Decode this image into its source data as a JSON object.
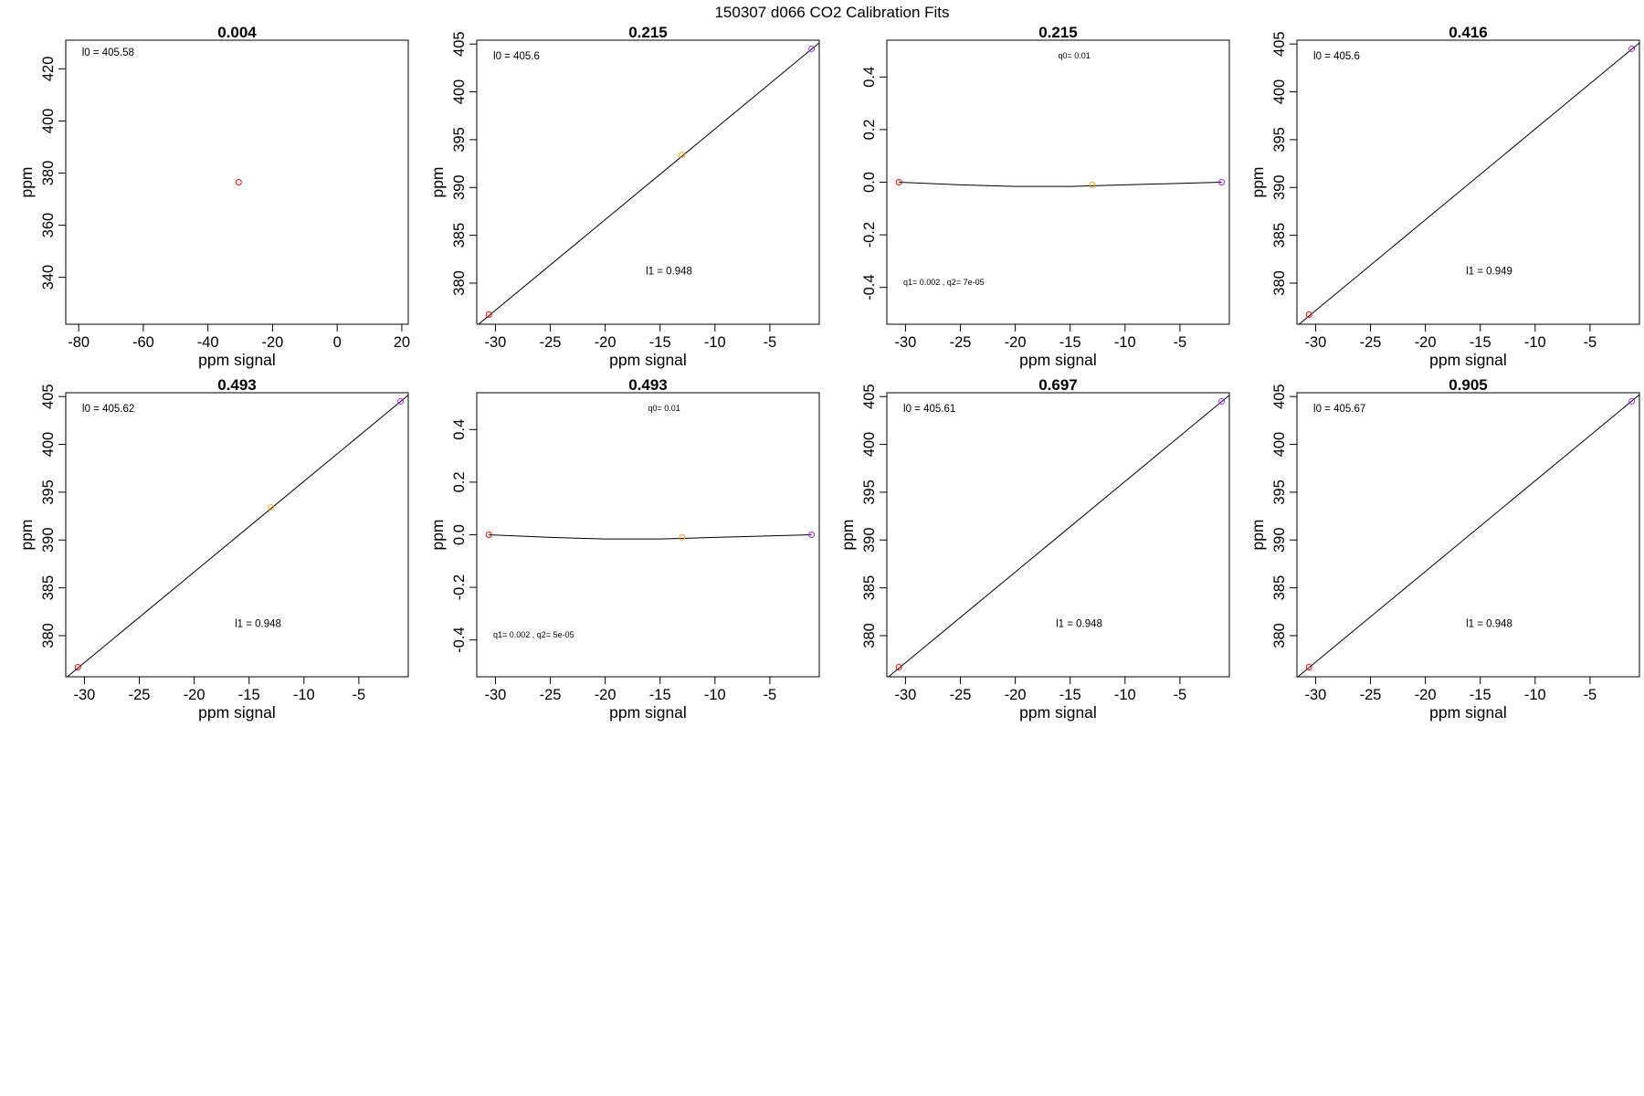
{
  "figure_title": "150307   d066   CO2 Calibration Fits",
  "colors": {
    "red": "#ff0000",
    "orange": "#ffa500",
    "purple": "#a020f0",
    "line": "#000000"
  },
  "chart_data": [
    {
      "type": "scatter",
      "title": "0.004",
      "xlabel": "ppm signal",
      "ylabel": "ppm",
      "xlim": [
        -84,
        22
      ],
      "ylim": [
        322,
        431
      ],
      "xticks": [
        -80,
        -60,
        -40,
        -20,
        0,
        20
      ],
      "xtick_labels": [
        "-80",
        "-60",
        "-40",
        "-20",
        "0",
        "20"
      ],
      "yticks": [
        340,
        360,
        380,
        400,
        420
      ],
      "ytick_labels": [
        "340",
        "360",
        "380",
        "400",
        "420"
      ],
      "points": [
        {
          "x": -30.5,
          "y": 376.5,
          "color": "red"
        }
      ],
      "fit": null,
      "annotations": [
        {
          "text": "l0 =  405.58",
          "class": "l",
          "x": -79,
          "y": 425
        }
      ]
    },
    {
      "type": "scatter",
      "title": "0.215",
      "xlabel": "ppm signal",
      "ylabel": "ppm",
      "xlim": [
        -31.7,
        -0.5
      ],
      "ylim": [
        375.7,
        405.4
      ],
      "xticks": [
        -30,
        -25,
        -20,
        -15,
        -10,
        -5
      ],
      "xtick_labels": [
        "-30",
        "-25",
        "-20",
        "-15",
        "-10",
        "-5"
      ],
      "yticks": [
        380,
        385,
        390,
        395,
        400,
        405
      ],
      "ytick_labels": [
        "380",
        "385",
        "390",
        "395",
        "400",
        "405"
      ],
      "points": [
        {
          "x": -30.6,
          "y": 376.7,
          "color": "red"
        },
        {
          "x": -13.0,
          "y": 393.4,
          "color": "orange"
        },
        {
          "x": -1.2,
          "y": 404.5,
          "color": "purple"
        }
      ],
      "fit": {
        "kind": "line",
        "intercept": 405.6,
        "slope": 0.948
      },
      "annotations": [
        {
          "text": "l0 =  405.6",
          "class": "l",
          "x": -30.2,
          "y": 403.4
        },
        {
          "text": "l1 =  0.948",
          "class": "l",
          "x": -16.3,
          "y": 380.9
        }
      ]
    },
    {
      "type": "scatter",
      "title": "0.215",
      "xlabel": "ppm signal",
      "ylabel": "",
      "xlim": [
        -31.7,
        -0.5
      ],
      "ylim": [
        -0.54,
        0.54
      ],
      "xticks": [
        -30,
        -25,
        -20,
        -15,
        -10,
        -5
      ],
      "xtick_labels": [
        "-30",
        "-25",
        "-20",
        "-15",
        "-10",
        "-5"
      ],
      "yticks": [
        -0.4,
        -0.2,
        0.0,
        0.2,
        0.4
      ],
      "ytick_labels": [
        "-0.4",
        "-0.2",
        "0.0",
        "0.2",
        "0.4"
      ],
      "points": [
        {
          "x": -30.6,
          "y": 0.0,
          "color": "red"
        },
        {
          "x": -13.0,
          "y": -0.01,
          "color": "orange"
        },
        {
          "x": -1.2,
          "y": 0.0,
          "color": "purple"
        }
      ],
      "fit": {
        "kind": "curve",
        "values": [
          [
            -30.6,
            0.0
          ],
          [
            -25,
            -0.01
          ],
          [
            -20,
            -0.016
          ],
          [
            -15,
            -0.016
          ],
          [
            -10,
            -0.01
          ],
          [
            -5,
            -0.004
          ],
          [
            -1.2,
            0.0
          ]
        ]
      },
      "annotations": [
        {
          "text": "q0= 0.01",
          "class": "q",
          "x": -16.1,
          "y": 0.47
        },
        {
          "text": "q1= 0.002 , q2= 7e-05",
          "class": "q",
          "x": -30.2,
          "y": -0.39
        }
      ]
    },
    {
      "type": "scatter",
      "title": "0.416",
      "xlabel": "ppm signal",
      "ylabel": "ppm",
      "xlim": [
        -31.7,
        -0.5
      ],
      "ylim": [
        375.7,
        405.4
      ],
      "xticks": [
        -30,
        -25,
        -20,
        -15,
        -10,
        -5
      ],
      "xtick_labels": [
        "-30",
        "-25",
        "-20",
        "-15",
        "-10",
        "-5"
      ],
      "yticks": [
        380,
        385,
        390,
        395,
        400,
        405
      ],
      "ytick_labels": [
        "380",
        "385",
        "390",
        "395",
        "400",
        "405"
      ],
      "points": [
        {
          "x": -30.6,
          "y": 376.7,
          "color": "red"
        },
        {
          "x": -1.2,
          "y": 404.5,
          "color": "purple"
        }
      ],
      "fit": {
        "kind": "line",
        "intercept": 405.6,
        "slope": 0.949
      },
      "annotations": [
        {
          "text": "l0 =  405.6",
          "class": "l",
          "x": -30.2,
          "y": 403.4
        },
        {
          "text": "l1 =  0.949",
          "class": "l",
          "x": -16.3,
          "y": 380.9
        }
      ]
    },
    {
      "type": "scatter",
      "title": "0.493",
      "xlabel": "ppm signal",
      "ylabel": "ppm",
      "xlim": [
        -31.7,
        -0.5
      ],
      "ylim": [
        375.7,
        405.4
      ],
      "xticks": [
        -30,
        -25,
        -20,
        -15,
        -10,
        -5
      ],
      "xtick_labels": [
        "-30",
        "-25",
        "-20",
        "-15",
        "-10",
        "-5"
      ],
      "yticks": [
        380,
        385,
        390,
        395,
        400,
        405
      ],
      "ytick_labels": [
        "380",
        "385",
        "390",
        "395",
        "400",
        "405"
      ],
      "points": [
        {
          "x": -30.6,
          "y": 376.7,
          "color": "red"
        },
        {
          "x": -13.0,
          "y": 393.4,
          "color": "orange"
        },
        {
          "x": -1.2,
          "y": 404.5,
          "color": "purple"
        }
      ],
      "fit": {
        "kind": "line",
        "intercept": 405.62,
        "slope": 0.948
      },
      "annotations": [
        {
          "text": "l0 =  405.62",
          "class": "l",
          "x": -30.2,
          "y": 403.4
        },
        {
          "text": "l1 =  0.948",
          "class": "l",
          "x": -16.3,
          "y": 380.9
        }
      ]
    },
    {
      "type": "scatter",
      "title": "0.493",
      "xlabel": "ppm signal",
      "ylabel": "ppm",
      "xlim": [
        -31.7,
        -0.5
      ],
      "ylim": [
        -0.54,
        0.54
      ],
      "xticks": [
        -30,
        -25,
        -20,
        -15,
        -10,
        -5
      ],
      "xtick_labels": [
        "-30",
        "-25",
        "-20",
        "-15",
        "-10",
        "-5"
      ],
      "yticks": [
        -0.4,
        -0.2,
        0.0,
        0.2,
        0.4
      ],
      "ytick_labels": [
        "-0.4",
        "-0.2",
        "0.0",
        "0.2",
        "0.4"
      ],
      "points": [
        {
          "x": -30.6,
          "y": 0.0,
          "color": "red"
        },
        {
          "x": -13.0,
          "y": -0.01,
          "color": "orange"
        },
        {
          "x": -1.2,
          "y": 0.0,
          "color": "purple"
        }
      ],
      "fit": {
        "kind": "curve",
        "values": [
          [
            -30.6,
            0.0
          ],
          [
            -25,
            -0.01
          ],
          [
            -20,
            -0.016
          ],
          [
            -15,
            -0.016
          ],
          [
            -10,
            -0.01
          ],
          [
            -5,
            -0.004
          ],
          [
            -1.2,
            0.0
          ]
        ]
      },
      "annotations": [
        {
          "text": "q0= 0.01",
          "class": "q",
          "x": -16.1,
          "y": 0.47
        },
        {
          "text": "q1= 0.002 , q2= 5e-05",
          "class": "q",
          "x": -30.2,
          "y": -0.39
        }
      ]
    },
    {
      "type": "scatter",
      "title": "0.697",
      "xlabel": "ppm signal",
      "ylabel": "ppm",
      "xlim": [
        -31.7,
        -0.5
      ],
      "ylim": [
        375.7,
        405.4
      ],
      "xticks": [
        -30,
        -25,
        -20,
        -15,
        -10,
        -5
      ],
      "xtick_labels": [
        "-30",
        "-25",
        "-20",
        "-15",
        "-10",
        "-5"
      ],
      "yticks": [
        380,
        385,
        390,
        395,
        400,
        405
      ],
      "ytick_labels": [
        "380",
        "385",
        "390",
        "395",
        "400",
        "405"
      ],
      "points": [
        {
          "x": -30.6,
          "y": 376.7,
          "color": "red"
        },
        {
          "x": -1.2,
          "y": 404.5,
          "color": "purple"
        }
      ],
      "fit": {
        "kind": "line",
        "intercept": 405.61,
        "slope": 0.948
      },
      "annotations": [
        {
          "text": "l0 =  405.61",
          "class": "l",
          "x": -30.2,
          "y": 403.4
        },
        {
          "text": "l1 =  0.948",
          "class": "l",
          "x": -16.3,
          "y": 380.9
        }
      ]
    },
    {
      "type": "scatter",
      "title": "0.905",
      "xlabel": "ppm signal",
      "ylabel": "ppm",
      "xlim": [
        -31.7,
        -0.5
      ],
      "ylim": [
        375.7,
        405.4
      ],
      "xticks": [
        -30,
        -25,
        -20,
        -15,
        -10,
        -5
      ],
      "xtick_labels": [
        "-30",
        "-25",
        "-20",
        "-15",
        "-10",
        "-5"
      ],
      "yticks": [
        380,
        385,
        390,
        395,
        400,
        405
      ],
      "ytick_labels": [
        "380",
        "385",
        "390",
        "395",
        "400",
        "405"
      ],
      "points": [
        {
          "x": -30.6,
          "y": 376.7,
          "color": "red"
        },
        {
          "x": -1.2,
          "y": 404.5,
          "color": "purple"
        }
      ],
      "fit": {
        "kind": "line",
        "intercept": 405.67,
        "slope": 0.948
      },
      "annotations": [
        {
          "text": "l0 =  405.67",
          "class": "l",
          "x": -30.2,
          "y": 403.4
        },
        {
          "text": "l1 =  0.948",
          "class": "l",
          "x": -16.3,
          "y": 380.9
        }
      ]
    }
  ]
}
